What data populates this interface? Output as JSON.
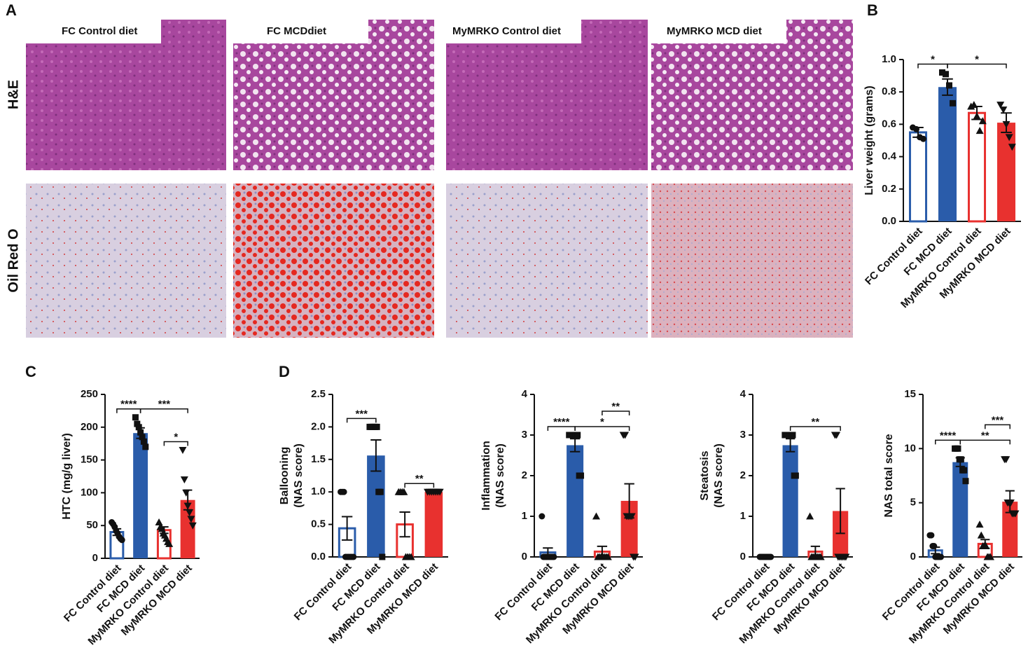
{
  "panel_labels": [
    "A",
    "B",
    "C",
    "D"
  ],
  "panel_a": {
    "columns": [
      "FC Control diet",
      "FC MCDdiet",
      "MyMRKO Control diet",
      "MyMRKO MCD diet"
    ],
    "rows": [
      "H&E",
      "Oil Red O"
    ]
  },
  "chart_data": [
    {
      "type": "bar",
      "ylabel": [
        "Liver weight (grams)"
      ],
      "categories": [
        "FC Control diet",
        "FC MCD diet",
        "MyMRKO Control diet",
        "MyMRKO MCD diet"
      ],
      "values": [
        0.55,
        0.83,
        0.67,
        0.61
      ],
      "errors": [
        0.03,
        0.05,
        0.04,
        0.06
      ],
      "colors": [
        "#2a5caa",
        "#2a5caa",
        "#e8312f",
        "#e8312f"
      ],
      "filled": [
        false,
        true,
        false,
        true
      ],
      "markers": [
        "circle",
        "square",
        "triangle",
        "triangle-down"
      ],
      "points": [
        [
          0.58,
          0.57,
          0.52,
          0.51
        ],
        [
          0.92,
          0.91,
          0.84,
          0.73
        ],
        [
          0.71,
          0.72,
          0.65,
          0.56,
          0.62
        ],
        [
          0.72,
          0.69,
          0.6,
          0.52,
          0.46
        ]
      ],
      "ylim": [
        0,
        1.0
      ],
      "yticks": [
        {
          "value": 0,
          "label": "0.0"
        },
        {
          "value": 0.2,
          "label": "0.2"
        },
        {
          "value": 0.4,
          "label": "0.4"
        },
        {
          "value": 0.6,
          "label": "0.6"
        },
        {
          "value": 0.8,
          "label": "0.8"
        },
        {
          "value": 1.0,
          "label": "1.0"
        }
      ],
      "annotations": [
        {
          "label": "*",
          "between": [
            0,
            1
          ]
        },
        {
          "label": "*",
          "between": [
            1,
            3
          ]
        }
      ]
    },
    {
      "type": "bar",
      "ylabel": [
        "HTC (mg/g liver)"
      ],
      "categories": [
        "FC Control diet",
        "FC MCD diet",
        "MyMRKO Control diet",
        "MyMRKO MCD diet"
      ],
      "values": [
        40,
        191,
        43,
        89
      ],
      "errors": [
        5,
        8,
        5,
        15
      ],
      "colors": [
        "#2a5caa",
        "#2a5caa",
        "#e8312f",
        "#e8312f"
      ],
      "filled": [
        false,
        true,
        false,
        true
      ],
      "markers": [
        "circle",
        "square",
        "triangle",
        "triangle-down"
      ],
      "points": [
        [
          55,
          52,
          48,
          42,
          38,
          33,
          30,
          28
        ],
        [
          215,
          205,
          200,
          192,
          185,
          178,
          170
        ],
        [
          55,
          48,
          45,
          38,
          35,
          30,
          25,
          22
        ],
        [
          165,
          120,
          100,
          80,
          70,
          60,
          50
        ]
      ],
      "ylim": [
        0,
        250
      ],
      "yticks": [
        0,
        50,
        100,
        150,
        200,
        250
      ],
      "annotations": [
        {
          "label": "****",
          "between": [
            0,
            1
          ]
        },
        {
          "label": "***",
          "between": [
            1,
            3
          ]
        },
        {
          "label": "*",
          "between": [
            2,
            3
          ]
        }
      ]
    },
    {
      "type": "bar",
      "ylabel": [
        "Ballooning",
        "(NAS score)"
      ],
      "categories": [
        "FC Control diet",
        "FC MCD diet",
        "MyMRKO Control diet",
        "MyMRKO MCD diet"
      ],
      "values": [
        0.44,
        1.56,
        0.5,
        1.0
      ],
      "errors": [
        0.18,
        0.24,
        0.19,
        0
      ],
      "colors": [
        "#2a5caa",
        "#2a5caa",
        "#e8312f",
        "#e8312f"
      ],
      "filled": [
        false,
        true,
        false,
        true
      ],
      "markers": [
        "circle",
        "square",
        "triangle",
        "triangle-down"
      ],
      "points": [
        [
          1,
          1,
          1,
          0,
          0,
          0,
          0,
          0,
          0
        ],
        [
          2,
          2,
          2,
          2,
          2,
          1,
          1,
          0
        ],
        [
          1,
          1,
          1,
          1,
          0,
          0,
          0,
          0
        ],
        [
          1,
          1,
          1,
          1,
          1,
          1,
          1
        ]
      ],
      "ylim": [
        0,
        2.5
      ],
      "yticks": [
        {
          "value": 0,
          "label": "0.0"
        },
        {
          "value": 0.5,
          "label": "0.5"
        },
        {
          "value": 1.0,
          "label": "1.0"
        },
        {
          "value": 1.5,
          "label": "1.5"
        },
        {
          "value": 2.0,
          "label": "2.0"
        },
        {
          "value": 2.5,
          "label": "2.5"
        }
      ],
      "annotations": [
        {
          "label": "***",
          "between": [
            0,
            1
          ]
        },
        {
          "label": "**",
          "between": [
            2,
            3
          ]
        }
      ]
    },
    {
      "type": "bar",
      "ylabel": [
        "Inflammation",
        "(NAS score)"
      ],
      "categories": [
        "FC Control diet",
        "FC MCD diet",
        "MyMRKO Control diet",
        "MyMRKO MCD diet"
      ],
      "values": [
        0.11,
        2.75,
        0.13,
        1.38
      ],
      "errors": [
        0.11,
        0.16,
        0.13,
        0.42
      ],
      "colors": [
        "#2a5caa",
        "#2a5caa",
        "#e8312f",
        "#e8312f"
      ],
      "filled": [
        false,
        true,
        false,
        true
      ],
      "markers": [
        "circle",
        "square",
        "triangle",
        "triangle-down"
      ],
      "points": [
        [
          1,
          0,
          0,
          0,
          0,
          0,
          0,
          0,
          0
        ],
        [
          3,
          3,
          3,
          3,
          3,
          3,
          2,
          2
        ],
        [
          1,
          0,
          0,
          0,
          0,
          0,
          0,
          0
        ],
        [
          3,
          3,
          1,
          1,
          1,
          1,
          0,
          0
        ]
      ],
      "ylim": [
        0,
        4
      ],
      "yticks": [
        0,
        1,
        2,
        3,
        4
      ],
      "annotations": [
        {
          "label": "****",
          "between": [
            0,
            1
          ]
        },
        {
          "label": "*",
          "between": [
            1,
            3
          ]
        },
        {
          "label": "**",
          "between": [
            2,
            3
          ]
        }
      ]
    },
    {
      "type": "bar",
      "ylabel": [
        "Steatosis",
        "(NAS score)"
      ],
      "categories": [
        "FC Control diet",
        "FC MCD diet",
        "MyMRKO Control diet",
        "MyMRKO MCD diet"
      ],
      "values": [
        0,
        2.75,
        0.13,
        1.13
      ],
      "errors": [
        0,
        0.16,
        0.13,
        0.55
      ],
      "colors": [
        "#2a5caa",
        "#2a5caa",
        "#e8312f",
        "#e8312f"
      ],
      "filled": [
        false,
        true,
        false,
        true
      ],
      "markers": [
        "circle",
        "square",
        "triangle",
        "triangle-down"
      ],
      "points": [
        [
          0,
          0,
          0,
          0,
          0,
          0,
          0,
          0,
          0
        ],
        [
          3,
          3,
          3,
          3,
          3,
          3,
          2,
          2
        ],
        [
          1,
          0,
          0,
          0,
          0,
          0,
          0,
          0
        ],
        [
          3,
          3,
          0,
          0,
          0,
          0,
          0,
          0
        ]
      ],
      "ylim": [
        0,
        4
      ],
      "yticks": [
        0,
        1,
        2,
        3,
        4
      ],
      "annotations": [
        {
          "label": "**",
          "between": [
            1,
            3
          ]
        }
      ]
    },
    {
      "type": "bar",
      "ylabel": [
        "NAS total score"
      ],
      "categories": [
        "FC Control diet",
        "FC MCD diet",
        "MyMRKO Control diet",
        "MyMRKO MCD diet"
      ],
      "values": [
        0.6,
        8.75,
        1.2,
        5.1
      ],
      "errors": [
        0.3,
        0.4,
        0.4,
        1.0
      ],
      "colors": [
        "#2a5caa",
        "#2a5caa",
        "#e8312f",
        "#e8312f"
      ],
      "filled": [
        false,
        true,
        false,
        true
      ],
      "markers": [
        "circle",
        "square",
        "triangle",
        "triangle-down"
      ],
      "points": [
        [
          2,
          2,
          1,
          1,
          0,
          0,
          0,
          0,
          0
        ],
        [
          10,
          10,
          10,
          9,
          9,
          8,
          8,
          7
        ],
        [
          3,
          2,
          1,
          1,
          1,
          0,
          0,
          0
        ],
        [
          9,
          9,
          5,
          5,
          5,
          4,
          4,
          4
        ]
      ],
      "ylim": [
        0,
        15
      ],
      "yticks": [
        0,
        5,
        10,
        15
      ],
      "annotations": [
        {
          "label": "****",
          "between": [
            0,
            1
          ]
        },
        {
          "label": "**",
          "between": [
            1,
            3
          ]
        },
        {
          "label": "***",
          "between": [
            2,
            3
          ]
        }
      ]
    }
  ]
}
